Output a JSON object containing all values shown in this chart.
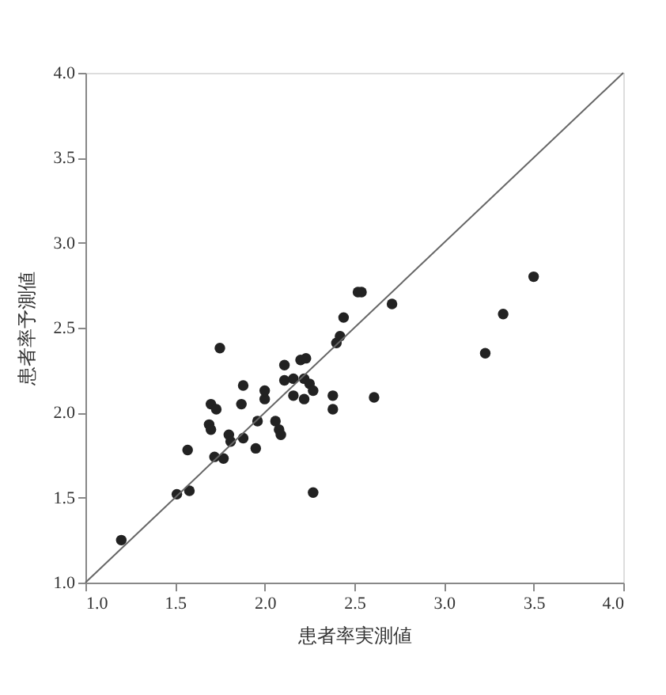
{
  "chart_data": {
    "type": "scatter",
    "xlabel": "患者率実測値",
    "ylabel": "患者率予測値",
    "grid": false,
    "xlim": [
      1.0,
      4.0
    ],
    "ylim": [
      1.0,
      4.0
    ],
    "xticks": [
      {
        "value": 1.0,
        "label": "1.0"
      },
      {
        "value": 1.5,
        "label": "1.5"
      },
      {
        "value": 2.0,
        "label": "2.0"
      },
      {
        "value": 2.5,
        "label": "2.5"
      },
      {
        "value": 3.0,
        "label": "3.0"
      },
      {
        "value": 3.5,
        "label": "3.5"
      },
      {
        "value": 4.0,
        "label": "4.0"
      }
    ],
    "yticks": [
      {
        "value": 1.0,
        "label": "1.0"
      },
      {
        "value": 1.5,
        "label": "1.5"
      },
      {
        "value": 2.0,
        "label": "2.0"
      },
      {
        "value": 2.5,
        "label": "2.5"
      },
      {
        "value": 3.0,
        "label": "3.0"
      },
      {
        "value": 3.5,
        "label": "3.5"
      },
      {
        "value": 4.0,
        "label": "4.0"
      }
    ],
    "series": [
      {
        "type": "scatter",
        "marker": "circle",
        "color": "#222222",
        "x": [
          1.2,
          1.51,
          1.58,
          1.57,
          1.75,
          1.7,
          1.73,
          1.69,
          1.7,
          1.72,
          1.77,
          1.8,
          1.81,
          1.88,
          1.87,
          1.88,
          1.95,
          1.96,
          2.0,
          2.0,
          2.06,
          2.08,
          2.09,
          2.11,
          2.11,
          2.16,
          2.16,
          2.2,
          2.23,
          2.22,
          2.22,
          2.25,
          2.27,
          2.27,
          2.38,
          2.38,
          2.4,
          2.42,
          2.44,
          2.52,
          2.54,
          2.61,
          2.71,
          3.23,
          3.33,
          3.5
        ],
        "values": [
          1.25,
          1.52,
          1.54,
          1.78,
          2.38,
          2.05,
          2.02,
          1.93,
          1.9,
          1.74,
          1.73,
          1.87,
          1.83,
          2.16,
          2.05,
          1.85,
          1.79,
          1.95,
          2.08,
          2.13,
          1.95,
          1.9,
          1.87,
          2.28,
          2.19,
          2.2,
          2.1,
          2.31,
          2.32,
          2.2,
          2.08,
          2.17,
          2.13,
          1.53,
          2.1,
          2.02,
          2.41,
          2.45,
          2.56,
          2.71,
          2.71,
          2.09,
          2.64,
          2.35,
          2.58,
          2.8
        ]
      },
      {
        "type": "line",
        "color": "#666666",
        "x": [
          1.0,
          4.0
        ],
        "values": [
          1.0,
          4.0
        ]
      }
    ]
  }
}
